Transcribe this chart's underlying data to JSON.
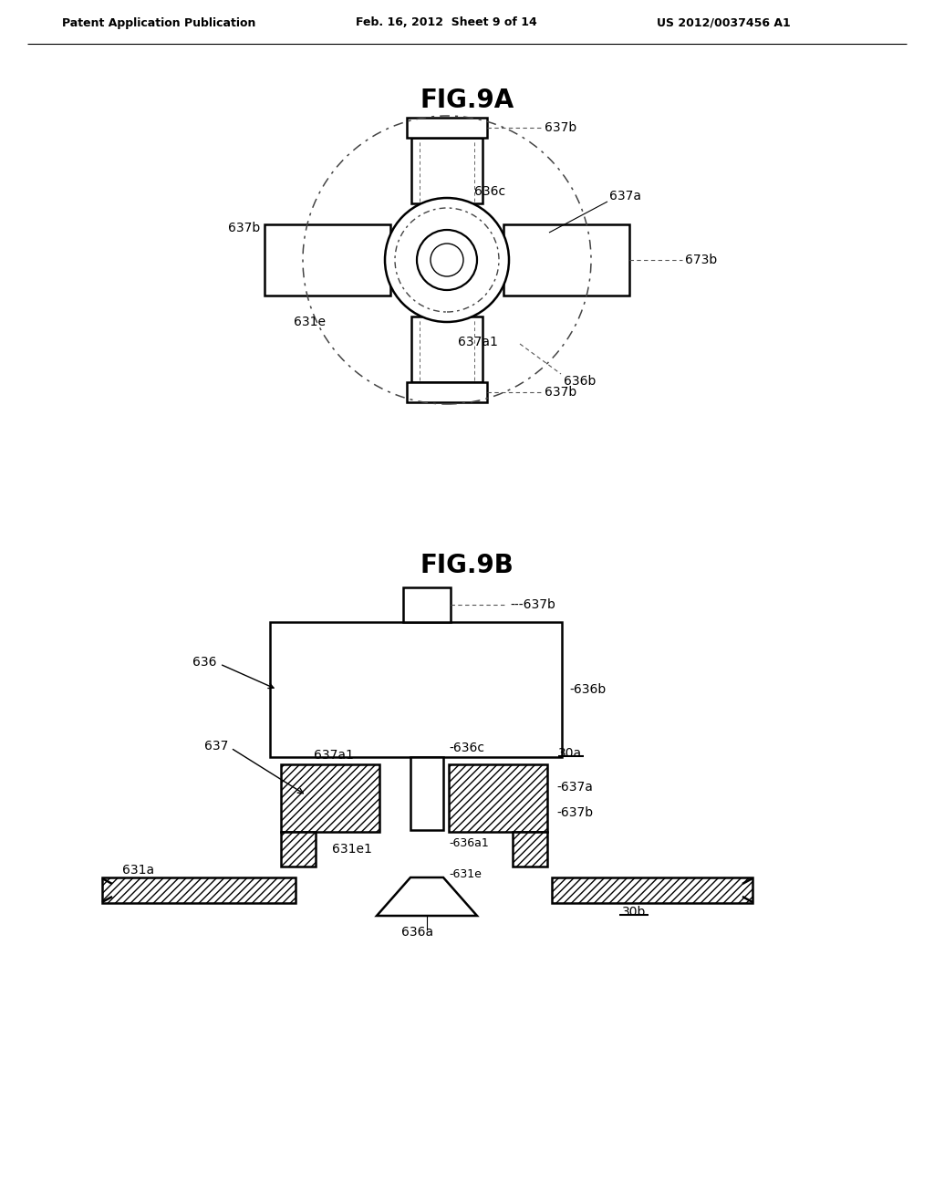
{
  "bg_color": "#ffffff",
  "header_left": "Patent Application Publication",
  "header_mid": "Feb. 16, 2012  Sheet 9 of 14",
  "header_right": "US 2012/0037456 A1",
  "fig9a_title": "FIG.9A",
  "fig9b_title": "FIG.9B",
  "line_color": "#000000",
  "label_fontsize": 10,
  "title_fontsize": 20
}
